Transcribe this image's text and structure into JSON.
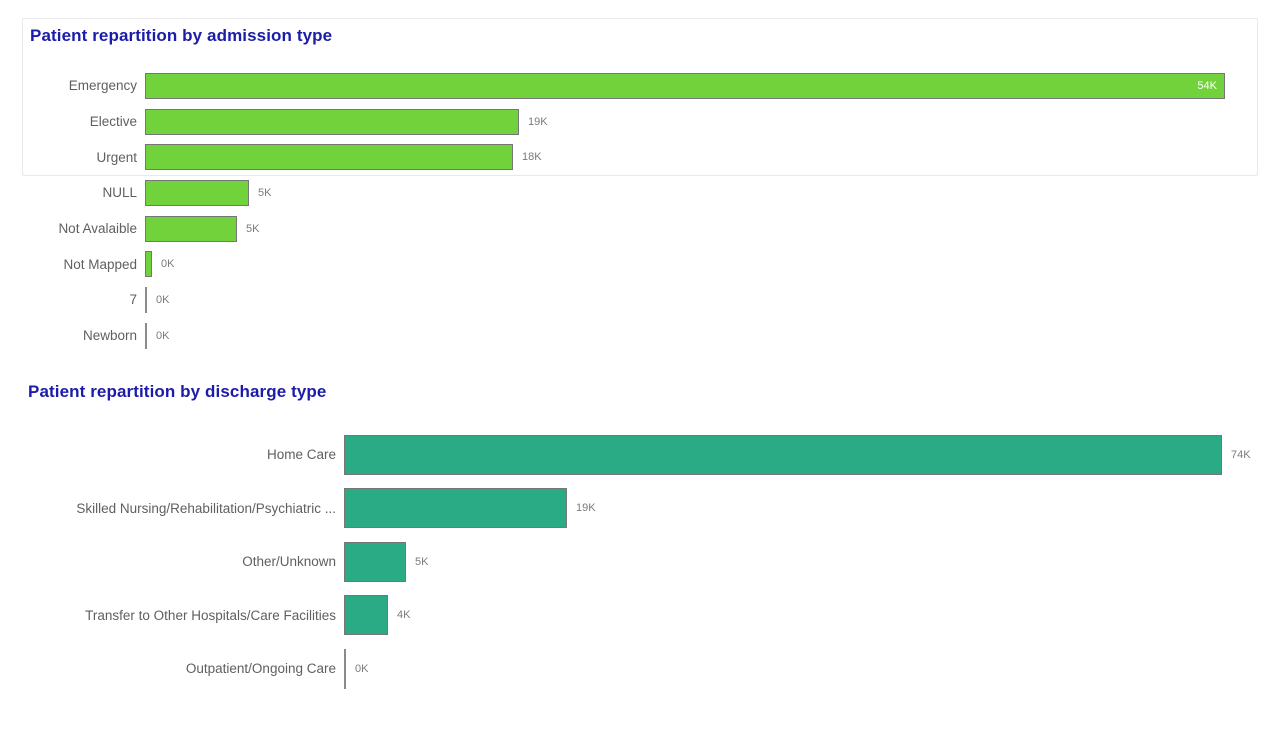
{
  "page": {
    "background": "#ffffff"
  },
  "chart_data": [
    {
      "type": "bar",
      "orientation": "horizontal",
      "title": "Patient repartition by admission type",
      "title_color": "#1c1caa",
      "bar_color": "#71d23c",
      "bar_border_color": "#767676",
      "category_label_color": "#5f5f5f",
      "value_label_color": "#7b7b7b",
      "inside_value_color": "#ffffff",
      "categories": [
        "Emergency",
        "Elective",
        "Urgent",
        "NULL",
        "Not Avalaible",
        "Not Mapped",
        "7",
        "Newborn"
      ],
      "values_thousands": [
        54,
        18.7,
        18.4,
        5.2,
        4.6,
        0.35,
        0.03,
        0.03
      ],
      "value_labels": [
        "54K",
        "19K",
        "18K",
        "5K",
        "5K",
        "0K",
        "0K",
        "0K"
      ],
      "value_label_inside": [
        true,
        false,
        false,
        false,
        false,
        false,
        false,
        false
      ],
      "xlim_thousands": [
        0,
        55.6
      ],
      "grid": false,
      "legend": "none"
    },
    {
      "type": "bar",
      "orientation": "horizontal",
      "title": "Patient repartition by discharge type",
      "title_color": "#1c1caa",
      "bar_color": "#2aab85",
      "bar_border_color": "#767676",
      "category_label_color": "#5f5f5f",
      "value_label_color": "#7b7b7b",
      "inside_value_color": "#ffffff",
      "categories": [
        "Home Care",
        "Skilled Nursing/Rehabilitation/Psychiatric ...",
        "Other/Unknown",
        "Transfer to Other Hospitals/Care Facilities",
        "Outpatient/Ongoing Care"
      ],
      "values_thousands": [
        74,
        18.75,
        5.2,
        3.7,
        0.03
      ],
      "value_labels": [
        "74K",
        "19K",
        "5K",
        "4K",
        "0K"
      ],
      "value_label_inside": [
        false,
        false,
        false,
        false,
        false
      ],
      "xlim_thousands": [
        0,
        77
      ],
      "grid": false,
      "legend": "none"
    }
  ]
}
